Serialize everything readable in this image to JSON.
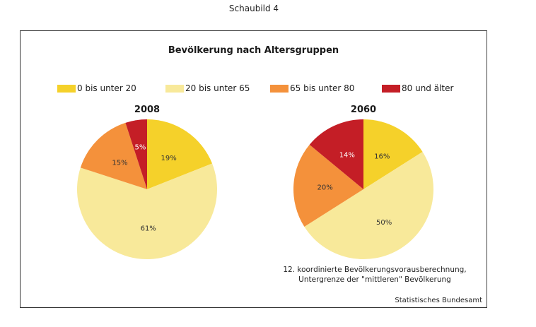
{
  "caption": "Schaubild 4",
  "chart_data": {
    "type": "pie",
    "title": "Bevölkerung nach Altersgruppen",
    "legend_position": "top",
    "legend": [
      {
        "label": "0 bis unter 20",
        "color": "#f5d12a"
      },
      {
        "label": "20 bis unter 65",
        "color": "#f8e99a"
      },
      {
        "label": "65 bis unter 80",
        "color": "#f4913b"
      },
      {
        "label": "80 und älter",
        "color": "#c41e26"
      }
    ],
    "charts": [
      {
        "name": "2008",
        "title": "2008",
        "slices": [
          {
            "category": "0 bis unter 20",
            "value": 19,
            "label": "19%",
            "color": "#f5d12a",
            "label_color": "#333333"
          },
          {
            "category": "20 bis unter 65",
            "value": 61,
            "label": "61%",
            "color": "#f8e99a",
            "label_color": "#333333"
          },
          {
            "category": "65 bis unter 80",
            "value": 15,
            "label": "15%",
            "color": "#f4913b",
            "label_color": "#333333"
          },
          {
            "category": "80 und älter",
            "value": 5,
            "label": "5%",
            "color": "#c41e26",
            "label_color": "#ffffff"
          }
        ]
      },
      {
        "name": "2060",
        "title": "2060",
        "slices": [
          {
            "category": "0 bis unter 20",
            "value": 16,
            "label": "16%",
            "color": "#f5d12a",
            "label_color": "#333333"
          },
          {
            "category": "20 bis unter 65",
            "value": 50,
            "label": "50%",
            "color": "#f8e99a",
            "label_color": "#333333"
          },
          {
            "category": "65 bis unter 80",
            "value": 20,
            "label": "20%",
            "color": "#f4913b",
            "label_color": "#333333"
          },
          {
            "category": "80 und älter",
            "value": 14,
            "label": "14%",
            "color": "#c41e26",
            "label_color": "#ffffff"
          }
        ]
      }
    ],
    "note": [
      "12. koordinierte Bevölkerungsvorausberechnung,",
      "Untergrenze der \"mittleren\" Bevölkerung"
    ],
    "source": "Statistisches Bundesamt"
  }
}
